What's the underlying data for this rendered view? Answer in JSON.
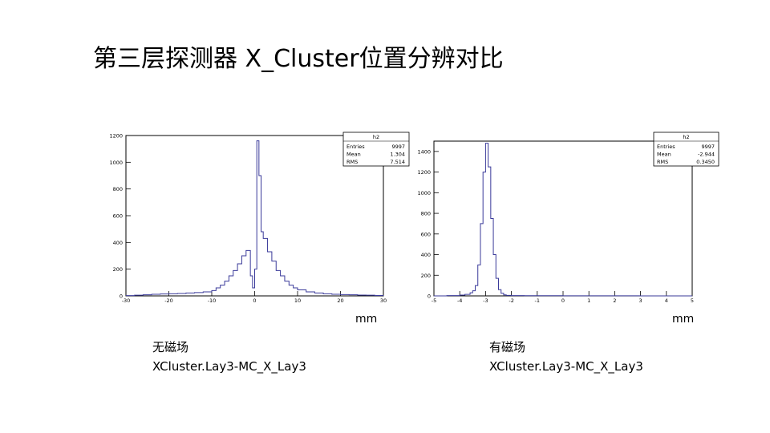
{
  "page": {
    "title": "第三层探测器 X_Cluster位置分辨对比"
  },
  "left": {
    "unit": "mm",
    "caption_line1": "无磁场",
    "caption_line2": "XCluster.Lay3-MC_X_Lay3"
  },
  "right": {
    "unit": "mm",
    "caption_line1": "有磁场",
    "caption_line2": "XCluster.Lay3-MC_X_Lay3"
  },
  "colors": {
    "line": "#3a3a9a",
    "frame": "#000000"
  },
  "chart_data": [
    {
      "type": "line",
      "histogram_name": "h2",
      "stats": [
        {
          "label": "Entries",
          "value": "9997"
        },
        {
          "label": "Mean",
          "value": "1.304"
        },
        {
          "label": "RMS",
          "value": "7.514"
        }
      ],
      "xlim": [
        -30,
        30
      ],
      "ylim": [
        0,
        1200
      ],
      "xticks": [
        -30,
        -20,
        -10,
        0,
        10,
        20,
        30
      ],
      "yticks": [
        0,
        200,
        400,
        600,
        800,
        1000,
        1200
      ],
      "x": [
        -30,
        -28,
        -26,
        -24,
        -22,
        -20,
        -18,
        -16,
        -14,
        -12,
        -10,
        -9,
        -8,
        -7,
        -6,
        -5,
        -4,
        -3,
        -2,
        -1,
        -0.5,
        0,
        0.5,
        1,
        1.5,
        2,
        3,
        4,
        5,
        6,
        7,
        8,
        9,
        10,
        12,
        14,
        16,
        18,
        20,
        22,
        24,
        26,
        28,
        30
      ],
      "y": [
        2,
        5,
        8,
        12,
        14,
        16,
        18,
        22,
        25,
        30,
        40,
        60,
        80,
        110,
        150,
        190,
        240,
        300,
        340,
        150,
        60,
        200,
        1160,
        900,
        480,
        430,
        330,
        260,
        190,
        150,
        110,
        80,
        60,
        45,
        30,
        22,
        16,
        12,
        10,
        8,
        6,
        5,
        3,
        2
      ]
    },
    {
      "type": "line",
      "histogram_name": "h2",
      "stats": [
        {
          "label": "Entries",
          "value": "9997"
        },
        {
          "label": "Mean",
          "value": "-2.944"
        },
        {
          "label": "RMS",
          "value": "0.3450"
        }
      ],
      "xlim": [
        -5,
        5
      ],
      "ylim": [
        0,
        1500
      ],
      "xticks": [
        -5,
        -4,
        -3,
        -2,
        -1,
        0,
        1,
        2,
        3,
        4,
        5
      ],
      "yticks": [
        0,
        200,
        400,
        600,
        800,
        1000,
        1200,
        1400
      ],
      "x": [
        -5,
        -4.5,
        -4,
        -3.8,
        -3.6,
        -3.5,
        -3.4,
        -3.3,
        -3.2,
        -3.1,
        -3.0,
        -2.9,
        -2.8,
        -2.7,
        -2.6,
        -2.5,
        -2.4,
        -2.3,
        -2.2,
        -2.0,
        -1.5,
        -1,
        0,
        1,
        2,
        3,
        4,
        5
      ],
      "y": [
        0,
        3,
        8,
        15,
        30,
        50,
        100,
        300,
        700,
        1200,
        1480,
        1250,
        750,
        400,
        170,
        60,
        25,
        10,
        5,
        3,
        2,
        2,
        1,
        1,
        1,
        0,
        0,
        0
      ]
    }
  ]
}
